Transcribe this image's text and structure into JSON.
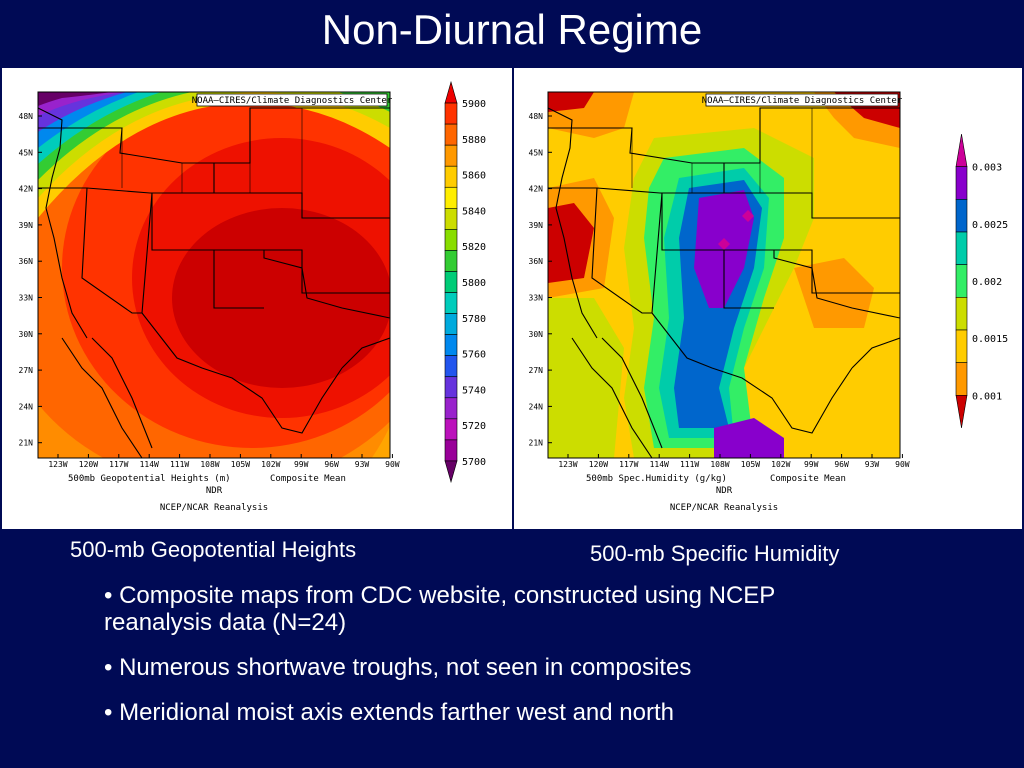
{
  "title": "Non-Diurnal Regime",
  "maps": [
    {
      "credit": "NOAA—CIRES/Climate Diagnostics Center",
      "lat_labels": [
        "48N",
        "45N",
        "42N",
        "39N",
        "36N",
        "33N",
        "30N",
        "27N",
        "24N",
        "21N"
      ],
      "lon_labels": [
        "123W",
        "120W",
        "117W",
        "114W",
        "111W",
        "108W",
        "105W",
        "102W",
        "99W",
        "96W",
        "93W",
        "90W"
      ],
      "field_label": "500mb Geopotential Heights (m)",
      "stat_label": "Composite Mean",
      "sub_label": "NDR",
      "source_label": "NCEP/NCAR Reanalysis",
      "colorbar_labels": [
        "5900",
        "5880",
        "5860",
        "5840",
        "5820",
        "5800",
        "5780",
        "5760",
        "5740",
        "5720",
        "5700"
      ],
      "colorbar_colors": [
        "#ee0000",
        "#ff3300",
        "#ff6600",
        "#ff9900",
        "#ffcc00",
        "#ffee00",
        "#ccdd00",
        "#88dd00",
        "#33cc33",
        "#00cc77",
        "#00ccbb",
        "#00aadd",
        "#0088ee",
        "#2255ee",
        "#6633dd",
        "#9922cc",
        "#bb11bb",
        "#990099",
        "#660066"
      ],
      "caption": "500-mb Geopotential Heights"
    },
    {
      "credit": "NOAA—CIRES/Climate Diagnostics Center",
      "lat_labels": [
        "48N",
        "45N",
        "42N",
        "39N",
        "36N",
        "33N",
        "30N",
        "27N",
        "24N",
        "21N"
      ],
      "lon_labels": [
        "123W",
        "120W",
        "117W",
        "114W",
        "111W",
        "108W",
        "105W",
        "102W",
        "99W",
        "96W",
        "93W",
        "90W"
      ],
      "field_label": "500mb Spec.Humidity (g/kg)",
      "stat_label": "Composite Mean",
      "sub_label": "NDR",
      "source_label": "NCEP/NCAR Reanalysis",
      "colorbar_labels": [
        "0.003",
        "0.0025",
        "0.002",
        "0.0015",
        "0.001"
      ],
      "colorbar_colors": [
        "#cc0099",
        "#8800cc",
        "#0066cc",
        "#00ccaa",
        "#33ee66",
        "#ccdd00",
        "#ffcc00",
        "#ff9900",
        "#cc0000"
      ],
      "caption": "500-mb Specific Humidity"
    }
  ],
  "bullets": [
    "• Composite maps from CDC website, constructed using NCEP reanalysis data (N=24)",
    "• Numerous shortwave troughs, not seen in composites",
    "• Meridional moist axis extends farther west and north"
  ]
}
